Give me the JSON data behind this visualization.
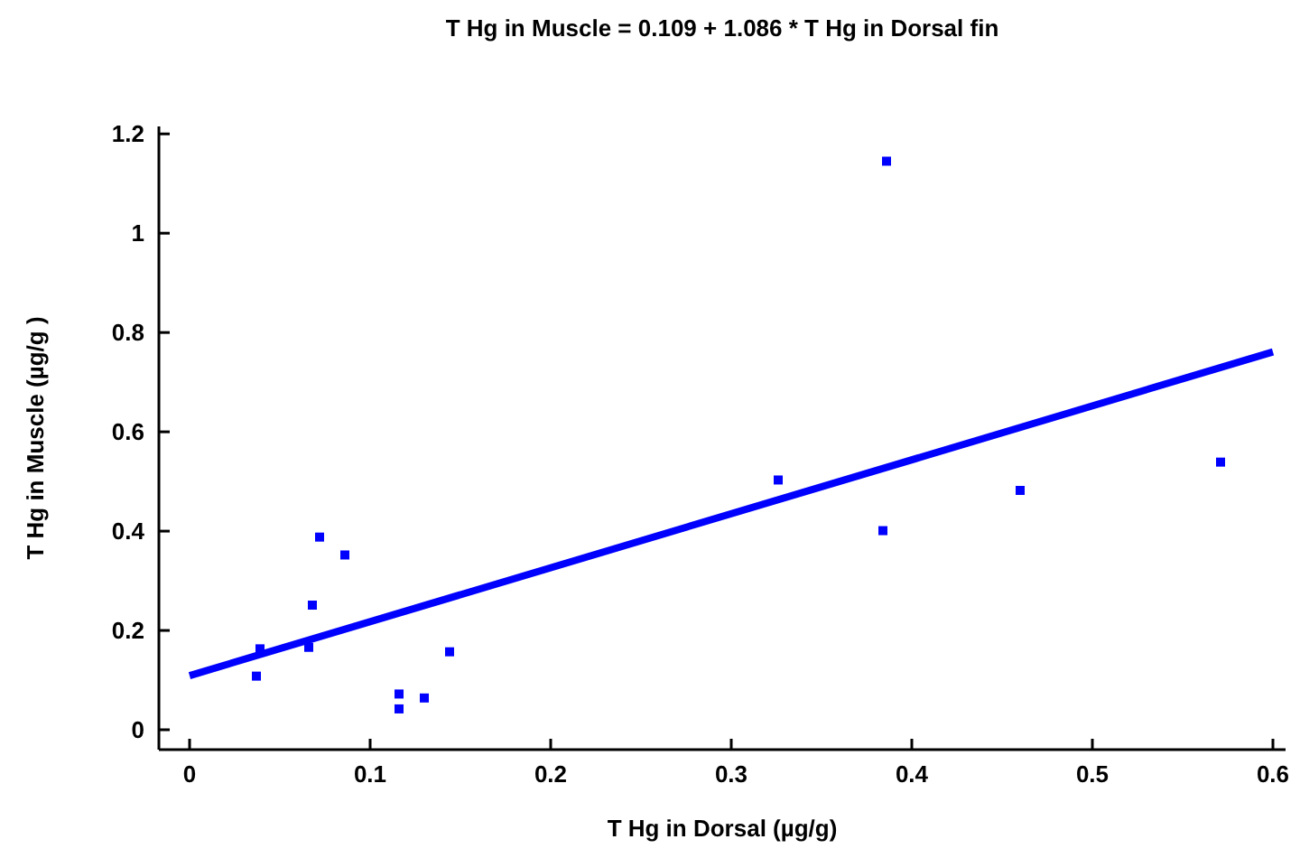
{
  "chart_data": {
    "type": "scatter",
    "title": "T Hg in Muscle = 0.109 + 1.086 * T Hg in Dorsal fin",
    "xlabel": "T Hg in Dorsal (µg/g)",
    "ylabel": "T Hg in Muscle (µg/g )",
    "xlim": [
      -0.017,
      0.607
    ],
    "ylim": [
      -0.04,
      1.215
    ],
    "xticks": [
      0,
      0.1,
      0.2,
      0.3,
      0.4,
      0.5,
      0.6
    ],
    "yticks": [
      0,
      0.2,
      0.4,
      0.6,
      0.8,
      1,
      1.2
    ],
    "grid": false,
    "series": [
      {
        "marker": "square",
        "color": "#0000ff",
        "x": [
          0.037,
          0.039,
          0.068,
          0.066,
          0.072,
          0.086,
          0.116,
          0.116,
          0.13,
          0.144,
          0.326,
          0.386,
          0.384,
          0.46,
          0.571
        ],
        "values": [
          0.108,
          0.163,
          0.251,
          0.166,
          0.388,
          0.352,
          0.072,
          0.042,
          0.064,
          0.157,
          0.503,
          1.145,
          0.401,
          0.482,
          0.539
        ]
      },
      {
        "type": "line",
        "color": "#0000ff",
        "line_style": "solid",
        "x": [
          0,
          0.6
        ],
        "values": [
          0.109,
          0.761
        ]
      }
    ]
  }
}
